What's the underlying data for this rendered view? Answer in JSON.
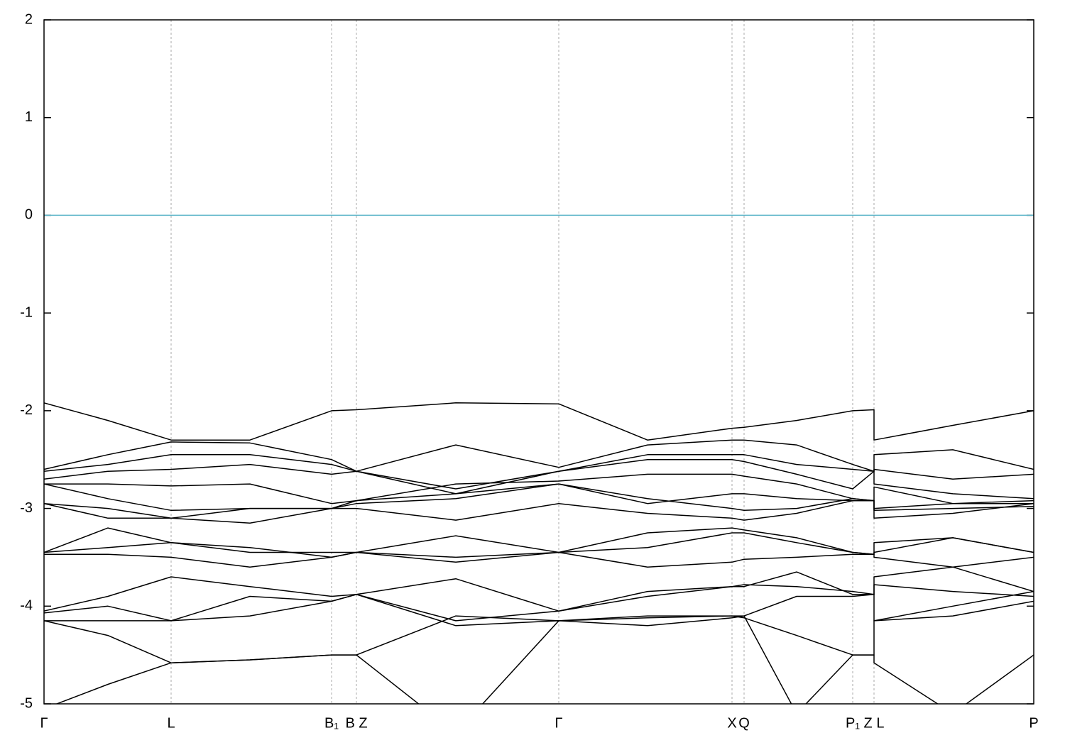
{
  "chart_data": {
    "type": "line",
    "x": [
      0,
      90,
      179,
      290,
      405,
      440,
      580,
      725,
      850,
      969,
      986,
      1060,
      1139,
      1169,
      1169,
      1280,
      1394
    ],
    "xlim": [
      0,
      1394
    ],
    "xticks": [
      {
        "value": 0,
        "label": "Γ"
      },
      {
        "value": 179,
        "label": "L"
      },
      {
        "value": 405,
        "label": "B₁"
      },
      {
        "value": 440,
        "label": "B Z"
      },
      {
        "value": 725,
        "label": "Γ"
      },
      {
        "value": 969,
        "label": "X"
      },
      {
        "value": 986,
        "label": "Q"
      },
      {
        "value": 1139,
        "label": "P₁"
      },
      {
        "value": 1169,
        "label": "Z L"
      },
      {
        "value": 1394,
        "label": "P"
      }
    ],
    "ylim": [
      -5,
      2
    ],
    "yticks": [
      -5,
      -4,
      -3,
      -2,
      -1,
      0,
      1,
      2
    ],
    "grid": true,
    "fermi_level": 0,
    "fermi_color": "#5ab4c8",
    "series": [
      {
        "color": "#000000",
        "values": [
          -1.92,
          -2.1,
          -2.3,
          -2.3,
          -2.0,
          -1.99,
          -1.92,
          -1.93,
          -2.3,
          -2.18,
          -2.17,
          -2.1,
          -2.0,
          -1.99,
          -2.3,
          -2.15,
          -2.0
        ]
      },
      {
        "color": "#000000",
        "values": [
          -2.6,
          -2.45,
          -2.32,
          -2.33,
          -2.5,
          -2.62,
          -2.35,
          -2.58,
          -2.35,
          -2.3,
          -2.3,
          -2.35,
          -2.55,
          -2.62,
          -2.45,
          -2.4,
          -2.6
        ]
      },
      {
        "color": "#000000",
        "values": [
          -2.62,
          -2.55,
          -2.45,
          -2.45,
          -2.55,
          -2.62,
          -2.8,
          -2.62,
          -2.45,
          -2.45,
          -2.45,
          -2.55,
          -2.6,
          -2.62,
          -2.6,
          -2.7,
          -2.65
        ]
      },
      {
        "color": "#000000",
        "values": [
          -2.7,
          -2.62,
          -2.6,
          -2.55,
          -2.65,
          -2.62,
          -2.85,
          -2.62,
          -2.5,
          -2.5,
          -2.52,
          -2.65,
          -2.8,
          -2.62,
          -2.75,
          -2.85,
          -2.9
        ]
      },
      {
        "color": "#000000",
        "values": [
          -2.75,
          -2.75,
          -2.77,
          -2.75,
          -2.95,
          -2.92,
          -2.75,
          -2.72,
          -2.65,
          -2.65,
          -2.67,
          -2.75,
          -2.9,
          -2.92,
          -2.78,
          -2.95,
          -2.92
        ]
      },
      {
        "color": "#000000",
        "values": [
          -2.75,
          -2.9,
          -3.02,
          -3.0,
          -3.0,
          -2.95,
          -2.9,
          -2.75,
          -2.9,
          -3.0,
          -3.02,
          -3.0,
          -2.9,
          -2.92,
          -3.0,
          -2.95,
          -2.95
        ]
      },
      {
        "color": "#000000",
        "values": [
          -2.95,
          -3.0,
          -3.1,
          -3.15,
          -3.0,
          -3.0,
          -3.12,
          -2.95,
          -3.05,
          -3.1,
          -3.12,
          -3.05,
          -2.92,
          -2.92,
          -3.02,
          -3.0,
          -2.98
        ]
      },
      {
        "color": "#000000",
        "values": [
          -2.95,
          -3.1,
          -3.1,
          -3.0,
          -3.0,
          -2.92,
          -2.85,
          -2.75,
          -2.95,
          -2.85,
          -2.85,
          -2.9,
          -2.92,
          -2.92,
          -3.1,
          -3.05,
          -2.95
        ]
      },
      {
        "color": "#000000",
        "values": [
          -3.45,
          -3.2,
          -3.35,
          -3.45,
          -3.45,
          -3.45,
          -3.28,
          -3.45,
          -3.25,
          -3.2,
          -3.22,
          -3.3,
          -3.45,
          -3.47,
          -3.35,
          -3.3,
          -3.45
        ]
      },
      {
        "color": "#000000",
        "values": [
          -3.45,
          -3.4,
          -3.35,
          -3.4,
          -3.5,
          -3.45,
          -3.5,
          -3.45,
          -3.4,
          -3.25,
          -3.25,
          -3.35,
          -3.45,
          -3.47,
          -3.45,
          -3.3,
          -3.45
        ]
      },
      {
        "color": "#000000",
        "values": [
          -3.47,
          -3.47,
          -3.5,
          -3.6,
          -3.5,
          -3.45,
          -3.55,
          -3.45,
          -3.6,
          -3.55,
          -3.52,
          -3.5,
          -3.47,
          -3.47,
          -3.5,
          -3.6,
          -3.5
        ]
      },
      {
        "color": "#000000",
        "values": [
          -4.05,
          -3.9,
          -3.7,
          -3.8,
          -3.9,
          -3.88,
          -3.72,
          -4.05,
          -3.9,
          -3.8,
          -3.8,
          -3.65,
          -3.88,
          -3.88,
          -3.7,
          -3.6,
          -3.85
        ]
      },
      {
        "color": "#000000",
        "values": [
          -4.07,
          -4.0,
          -4.15,
          -3.9,
          -3.95,
          -3.88,
          -4.15,
          -4.05,
          -3.85,
          -3.8,
          -3.78,
          -3.8,
          -3.85,
          -3.88,
          -3.78,
          -3.85,
          -3.9
        ]
      },
      {
        "color": "#000000",
        "values": [
          -4.15,
          -4.15,
          -4.15,
          -4.1,
          -3.95,
          -3.88,
          -4.2,
          -4.15,
          -4.1,
          -4.1,
          -4.1,
          -3.9,
          -3.9,
          -3.88,
          -4.15,
          -4.0,
          -3.85
        ]
      },
      {
        "color": "#000000",
        "values": [
          -4.15,
          -4.3,
          -4.58,
          -4.55,
          -4.5,
          -4.5,
          -4.1,
          -4.15,
          -4.12,
          -4.1,
          -4.12,
          -4.3,
          -4.5,
          -4.5,
          -4.15,
          -4.1,
          -3.95
        ]
      },
      {
        "color": "#000000",
        "values": [
          -5.05,
          -4.8,
          -4.58,
          -4.55,
          -4.5,
          -4.5,
          -5.3,
          -4.15,
          -4.2,
          -4.12,
          -4.1,
          -5.1,
          -4.5,
          -4.5,
          -4.58,
          -5.1,
          -4.5
        ]
      }
    ]
  }
}
